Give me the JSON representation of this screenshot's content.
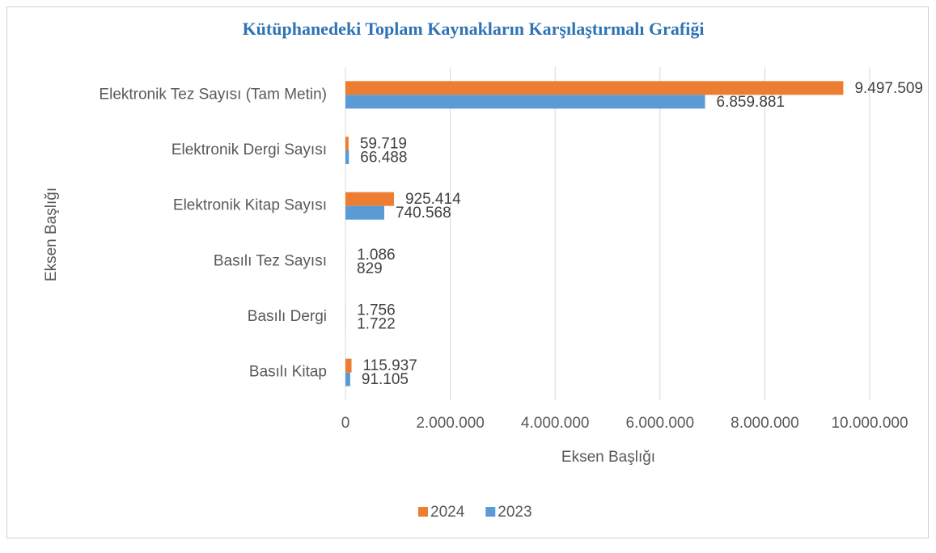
{
  "chart_data": {
    "type": "barh",
    "title": "Kütüphanedeki Toplam Kaynakların Karşılaştırmalı Grafiği",
    "xlabel": "Eksen Başlığı",
    "ylabel": "Eksen Başlığı",
    "categories": [
      "Elektronik Tez Sayısı (Tam Metin)",
      "Elektronik Dergi Sayısı",
      "Elektronik Kitap Sayısı",
      "Basılı Tez Sayısı",
      "Basılı Dergi",
      "Basılı Kitap"
    ],
    "series": [
      {
        "name": "2024",
        "color": "#ed7d31",
        "values": [
          9497509,
          59719,
          925414,
          1086,
          1756,
          115937
        ],
        "value_labels": [
          "9.497.509",
          "59.719",
          "925.414",
          "1.086",
          "1.756",
          "115.937"
        ]
      },
      {
        "name": "2023",
        "color": "#5b9bd5",
        "values": [
          6859881,
          66488,
          740568,
          829,
          1722,
          91105
        ],
        "value_labels": [
          "6.859.881",
          "66.488",
          "740.568",
          "829",
          "1.722",
          "91.105"
        ]
      }
    ],
    "xlim": [
      0,
      10000000
    ],
    "xticks": [
      0,
      {
        "value": 2000000,
        "label": "2.000.000"
      },
      {
        "value": 4000000,
        "label": "4.000.000"
      },
      {
        "value": 6000000,
        "label": "6.000.000"
      },
      {
        "value": 8000000,
        "label": "8.000.000"
      },
      {
        "value": 10000000,
        "label": "10.000.000"
      }
    ],
    "grid": true,
    "legend": "bottom"
  }
}
